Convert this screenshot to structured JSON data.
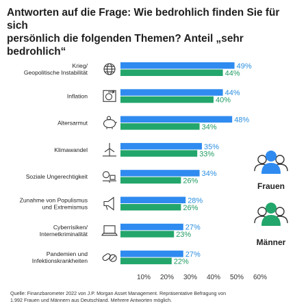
{
  "title_lines": [
    "Antworten auf die Frage: Wie bedrohlich finden Sie für sich",
    "persönlich die folgenden Themen? Anteil „sehr bedrohlich“"
  ],
  "source_lines": [
    "Quelle: Finanzbarometer 2022 von J.P. Morgan Asset Management. Repräsentative Befragung von",
    "1.992 Frauen und Männern aus Deutschland. Mehrere Antworten möglich."
  ],
  "colors": {
    "frauen": "#2f8bf0",
    "maenner": "#23a66b",
    "axis_text": "#333333",
    "label_frauen": "#2a8ee0",
    "label_maenner": "#1f9a62"
  },
  "chart_data": {
    "type": "bar",
    "orientation": "horizontal",
    "categories": [
      [
        "Krieg/",
        "Geopolitische Instabilität"
      ],
      [
        "Inflation"
      ],
      [
        "Altersarmut"
      ],
      [
        "Klimawandel"
      ],
      [
        "Soziale Ungerechtigkeit"
      ],
      [
        "Zunahme von Populismus",
        "und Extremismus"
      ],
      [
        "Cyberrisiken/",
        "Internetkriminalität"
      ],
      [
        "Pandemien und",
        "Infektionskrankheiten"
      ]
    ],
    "category_icons": [
      "globe-icon",
      "inflation-icon",
      "piggy-bank-icon",
      "wind-turbine-icon",
      "scale-icon",
      "megaphone-icon",
      "laptop-icon",
      "pills-icon"
    ],
    "series": [
      {
        "name": "Frauen",
        "values": [
          49,
          44,
          48,
          35,
          34,
          28,
          27,
          27
        ],
        "labels": [
          "49%",
          "44%",
          "48%",
          "35%",
          "34%",
          "28%",
          "27%",
          "27%"
        ]
      },
      {
        "name": "Männer",
        "values": [
          44,
          40,
          34,
          33,
          26,
          26,
          23,
          22
        ],
        "labels": [
          "44%",
          "40%",
          "34%",
          "33%",
          "26%",
          "26%",
          "23%",
          "22%"
        ]
      }
    ],
    "xticks": [
      "10%",
      "20%",
      "30%",
      "40%",
      "50%",
      "60%"
    ],
    "xtick_values": [
      10,
      20,
      30,
      40,
      50,
      60
    ],
    "xlim": [
      0,
      60
    ],
    "legend": [
      {
        "label": "Frauen",
        "icon": "people-icon-blue"
      },
      {
        "label": "Männer",
        "icon": "people-icon-green"
      }
    ]
  }
}
